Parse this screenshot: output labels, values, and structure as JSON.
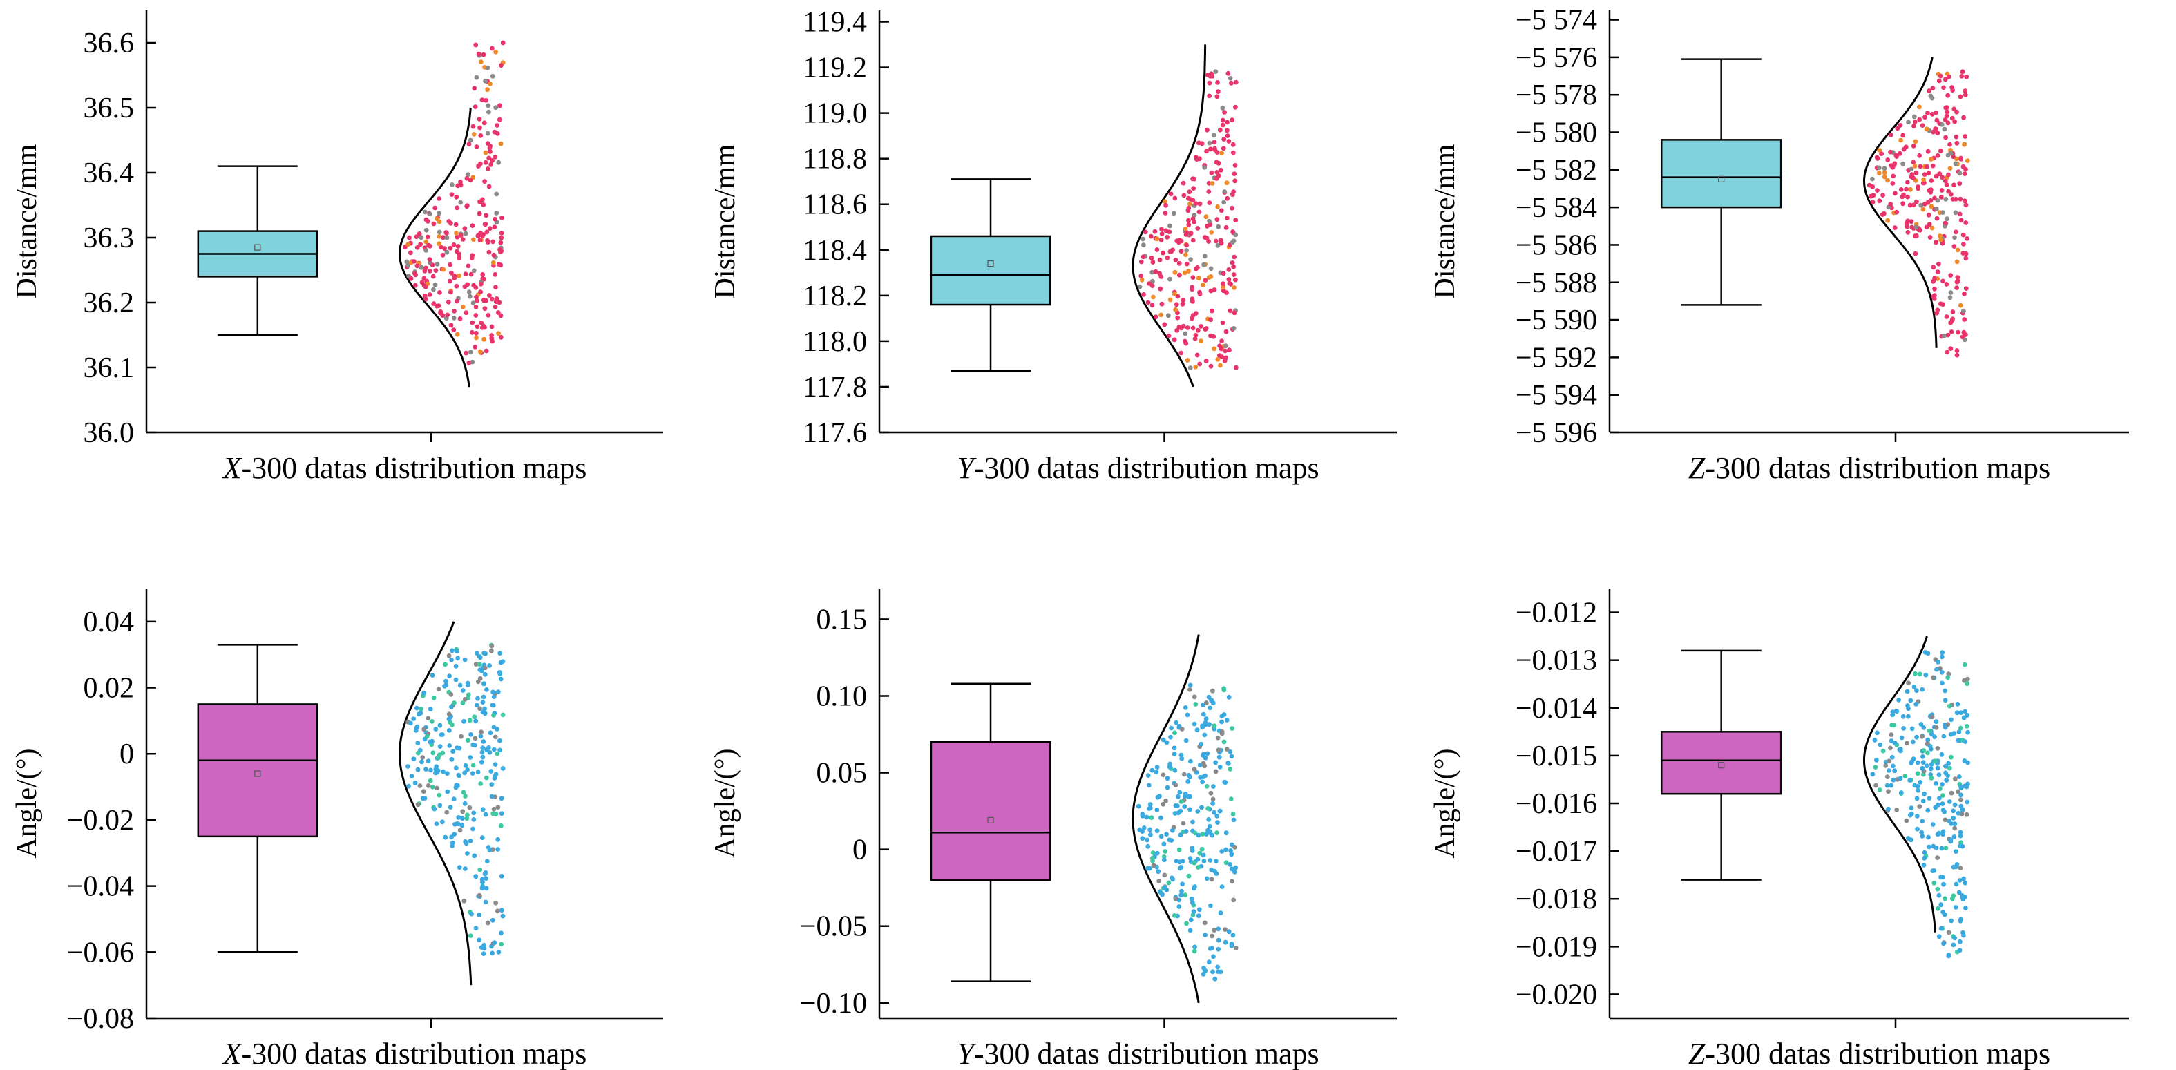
{
  "chart_data": [
    {
      "type": "box",
      "title": "",
      "xlabel_prefix": "X",
      "xlabel_rest": "-300 datas distribution maps",
      "ylabel": "Distance/mm",
      "ylim": [
        36.0,
        36.65
      ],
      "yticks": [
        36.0,
        36.1,
        36.2,
        36.3,
        36.4,
        36.5,
        36.6
      ],
      "ytick_labels": [
        "36.0",
        "36.1",
        "36.2",
        "36.3",
        "36.4",
        "36.5",
        "36.6"
      ],
      "box": {
        "min": 36.15,
        "q1": 36.24,
        "median": 36.275,
        "mean": 36.285,
        "q3": 36.31,
        "max": 36.41
      },
      "normal_curve": {
        "mean": 36.275,
        "sd": 0.08,
        "y_from": 36.07,
        "y_to": 36.5
      },
      "scatter_y_range": [
        36.1,
        36.6
      ],
      "colors": {
        "box": "#7fd1dc",
        "points": "#e8336b",
        "points_alt": "#f08a28",
        "curve": "#000000"
      }
    },
    {
      "type": "box",
      "title": "",
      "xlabel_prefix": "Y",
      "xlabel_rest": "-300 datas distribution maps",
      "ylabel": "Distance/mm",
      "ylim": [
        117.6,
        119.45
      ],
      "yticks": [
        117.6,
        117.8,
        118.0,
        118.2,
        118.4,
        118.6,
        118.8,
        119.0,
        119.2,
        119.4
      ],
      "ytick_labels": [
        "117.6",
        "117.8",
        "118.0",
        "118.2",
        "118.4",
        "118.6",
        "118.8",
        "119.0",
        "119.2",
        "119.4"
      ],
      "box": {
        "min": 117.87,
        "q1": 118.16,
        "median": 118.29,
        "mean": 118.34,
        "q3": 118.46,
        "max": 118.71
      },
      "normal_curve": {
        "mean": 118.33,
        "sd": 0.28,
        "y_from": 117.8,
        "y_to": 119.3
      },
      "scatter_y_range": [
        117.88,
        119.2
      ],
      "colors": {
        "box": "#7fd1dc",
        "points": "#e8336b",
        "points_alt": "#f08a28",
        "curve": "#000000"
      }
    },
    {
      "type": "box",
      "title": "",
      "xlabel_prefix": "Z",
      "xlabel_rest": "-300 datas distribution maps",
      "ylabel": "Distance/mm",
      "ylim": [
        -5596,
        -5573.5
      ],
      "yticks": [
        -5596,
        -5594,
        -5592,
        -5590,
        -5588,
        -5586,
        -5584,
        -5582,
        -5580,
        -5578,
        -5576,
        -5574
      ],
      "ytick_labels": [
        "−5 596",
        "−5 594",
        "−5 592",
        "−5 590",
        "−5 588",
        "−5 586",
        "−5 584",
        "−5 582",
        "−5 580",
        "−5 578",
        "−5 576",
        "−5 574"
      ],
      "box": {
        "min": -5589.2,
        "q1": -5584.0,
        "median": -5582.4,
        "mean": -5582.5,
        "q3": -5580.4,
        "max": -5576.1
      },
      "normal_curve": {
        "mean": -5582.6,
        "sd": 2.8,
        "y_from": -5591.5,
        "y_to": -5576.0
      },
      "scatter_y_range": [
        -5591.9,
        -5576.5
      ],
      "colors": {
        "box": "#7fd1dc",
        "points": "#e8336b",
        "points_alt": "#f08a28",
        "curve": "#000000"
      }
    },
    {
      "type": "box",
      "title": "",
      "xlabel_prefix": "X",
      "xlabel_rest": "-300 datas distribution maps",
      "ylabel": "Angle/(°)",
      "ylim": [
        -0.08,
        0.05
      ],
      "yticks": [
        -0.08,
        -0.06,
        -0.04,
        -0.02,
        0,
        0.02,
        0.04
      ],
      "ytick_labels": [
        "−0.08",
        "−0.06",
        "−0.04",
        "−0.02",
        "0",
        "0.02",
        "0.04"
      ],
      "box": {
        "min": -0.06,
        "q1": -0.025,
        "median": -0.002,
        "mean": -0.006,
        "q3": 0.015,
        "max": 0.033
      },
      "normal_curve": {
        "mean": 0.0,
        "sd": 0.024,
        "y_from": -0.07,
        "y_to": 0.04
      },
      "scatter_y_range": [
        -0.061,
        0.033
      ],
      "colors": {
        "box": "#cc66c0",
        "points": "#3aa9e0",
        "points_alt": "#3cc9a2",
        "curve": "#000000"
      }
    },
    {
      "type": "box",
      "title": "",
      "xlabel_prefix": "Y",
      "xlabel_rest": "-300 datas distribution maps",
      "ylabel": "Angle/(°)",
      "ylim": [
        -0.11,
        0.17
      ],
      "yticks": [
        -0.1,
        -0.05,
        0,
        0.05,
        0.1,
        0.15
      ],
      "ytick_labels": [
        "−0.10",
        "−0.05",
        "0",
        "0.05",
        "0.10",
        "0.15"
      ],
      "box": {
        "min": -0.086,
        "q1": -0.02,
        "median": 0.011,
        "mean": 0.019,
        "q3": 0.07,
        "max": 0.108
      },
      "normal_curve": {
        "mean": 0.02,
        "sd": 0.055,
        "y_from": -0.1,
        "y_to": 0.14
      },
      "scatter_y_range": [
        -0.085,
        0.108
      ],
      "colors": {
        "box": "#cc66c0",
        "points": "#3aa9e0",
        "points_alt": "#3cc9a2",
        "curve": "#000000"
      }
    },
    {
      "type": "box",
      "title": "",
      "xlabel_prefix": "Z",
      "xlabel_rest": "-300 datas distribution maps",
      "ylabel": "Angle/(°)",
      "ylim": [
        -0.0205,
        -0.0115
      ],
      "yticks": [
        -0.02,
        -0.019,
        -0.018,
        -0.017,
        -0.016,
        -0.015,
        -0.014,
        -0.013,
        -0.012
      ],
      "ytick_labels": [
        "−0.020",
        "−0.019",
        "−0.018",
        "−0.017",
        "−0.016",
        "−0.015",
        "−0.014",
        "−0.013",
        "−0.012"
      ],
      "box": {
        "min": -0.0176,
        "q1": -0.0158,
        "median": -0.0151,
        "mean": -0.0152,
        "q3": -0.0145,
        "max": -0.0128
      },
      "normal_curve": {
        "mean": -0.0151,
        "sd": 0.0013,
        "y_from": -0.0187,
        "y_to": -0.0125
      },
      "scatter_y_range": [
        -0.0192,
        -0.0128
      ],
      "colors": {
        "box": "#cc66c0",
        "points": "#3aa9e0",
        "points_alt": "#3cc9a2",
        "curve": "#000000"
      }
    }
  ]
}
